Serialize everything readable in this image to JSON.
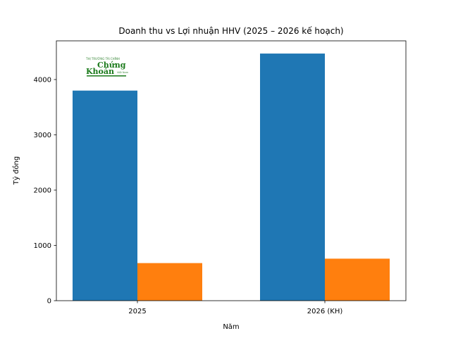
{
  "chart_data": {
    "type": "bar",
    "title": "Doanh thu vs Lợi nhuận HHV (2025 – 2026 kế hoạch)",
    "xlabel": "Năm",
    "ylabel": "Tỷ đồng",
    "categories": [
      "2025",
      "2026 (KH)"
    ],
    "series": [
      {
        "values": [
          3800,
          4470
        ],
        "color": "#1f77b4"
      },
      {
        "values": [
          680,
          760
        ],
        "color": "#ff7f0e"
      }
    ],
    "ylim": [
      0,
      4700
    ],
    "yticks": [
      0,
      1000,
      2000,
      3000,
      4000
    ],
    "grid": false,
    "legend": false
  },
  "watermark": {
    "kind": "logo",
    "text_top": "THỊ TRƯỜNG TÀI CHÍNH",
    "text_main_1": "Chứng",
    "text_main_2": "Khoán",
    "text_side": "Việt Nam",
    "color": "#1a7a1a"
  }
}
